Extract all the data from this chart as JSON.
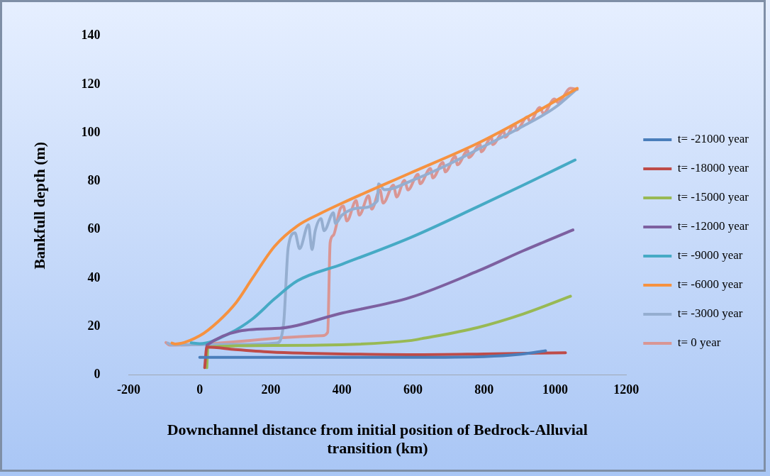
{
  "chart_data": {
    "type": "line",
    "xlabel": "Downchannel distance from initial position of Bedrock-Alluvial transition (km)",
    "ylabel": "Bankfull depth (m)",
    "xlim": [
      -200,
      1200
    ],
    "xticks": [
      -200,
      0,
      200,
      400,
      600,
      800,
      1000,
      1200
    ],
    "ylim": [
      0,
      140
    ],
    "yticks": [
      0,
      20,
      40,
      60,
      80,
      100,
      120,
      140
    ],
    "grid": false,
    "legend": "right",
    "marker": "none",
    "line_style": "solid",
    "series": [
      {
        "name": "t= -21000 year",
        "color": "#4a7ebb",
        "x": [
          0,
          200,
          400,
          600,
          800,
          900,
          973
        ],
        "values": [
          7.3,
          7.3,
          7.3,
          7.3,
          7.6,
          8.5,
          10
        ]
      },
      {
        "name": "t= -18000 year",
        "color": "#be4b48",
        "x": [
          14,
          20,
          100,
          200,
          300,
          400,
          600,
          800,
          1029
        ],
        "values": [
          3,
          11.5,
          10.5,
          9.5,
          9,
          8.7,
          8.4,
          8.7,
          9.2
        ]
      },
      {
        "name": "t= -15000 year",
        "color": "#98b954",
        "x": [
          20,
          23,
          211,
          338,
          592,
          624,
          782,
          910,
          1043
        ],
        "values": [
          3,
          11.5,
          12.2,
          12.3,
          14.2,
          15,
          19.6,
          25.2,
          32.5
        ]
      },
      {
        "name": "t= -12000 year",
        "color": "#7d60a0",
        "x": [
          18,
          20,
          211,
          401,
          592,
          782,
          910,
          1050
        ],
        "values": [
          7,
          12.3,
          19.2,
          25.6,
          32,
          42.9,
          51.3,
          59.9
        ]
      },
      {
        "name": "t= -9000 year",
        "color": "#46aac5",
        "x": [
          -24,
          0,
          84,
          148,
          211,
          275,
          401,
          592,
          782,
          910,
          1056
        ],
        "values": [
          13.3,
          12.9,
          17.2,
          23.1,
          31.5,
          38.9,
          45.8,
          56.7,
          69.5,
          78.4,
          88.8
        ]
      },
      {
        "name": "t= -6000 year",
        "color": "#f69240",
        "x": [
          -78,
          -69,
          0,
          52,
          103,
          148,
          211,
          275,
          338,
          401,
          592,
          782,
          910,
          1062
        ],
        "values": [
          13.2,
          12.8,
          16.2,
          22.1,
          30,
          39.9,
          53.2,
          61.6,
          66.6,
          71,
          83.4,
          95.7,
          105.6,
          118.4
        ]
      },
      {
        "name": "t= -3000 year",
        "color": "#95aed0",
        "x": [
          -90,
          -80,
          100,
          217,
          236,
          249,
          268,
          281,
          306,
          316,
          325,
          341,
          350,
          376,
          382,
          400,
          450,
          500,
          503,
          520,
          600,
          700,
          800,
          900,
          1000,
          1060
        ],
        "values": [
          13.2,
          12.5,
          12.6,
          13.2,
          21.1,
          52.7,
          58.7,
          52.2,
          62.1,
          51.8,
          59.6,
          64.6,
          59.6,
          67,
          62.6,
          66,
          69,
          72,
          78.9,
          76.5,
          80.5,
          87,
          94.5,
          102,
          110.5,
          118
        ]
      },
      {
        "name": "t= 0 year",
        "color": "#d99694",
        "x": [
          -95,
          -84,
          344,
          360,
          367,
          376,
          395,
          404,
          414,
          440,
          449,
          475,
          484,
          507,
          516,
          545,
          554,
          576,
          586,
          614,
          620,
          649,
          656,
          684,
          691,
          719,
          725,
          754,
          757,
          789,
          792,
          821,
          824,
          856,
          859,
          887,
          891,
          922,
          929,
          957,
          967,
          998,
          1008,
          1043,
          1062
        ],
        "values": [
          13.4,
          12.3,
          16.2,
          17.6,
          54.7,
          57.7,
          68.5,
          69.8,
          63.6,
          72,
          66,
          74,
          68.5,
          76.4,
          71,
          78.4,
          73.5,
          80.4,
          76.4,
          82.9,
          79,
          85.3,
          81.4,
          87.8,
          83.9,
          90.3,
          86.8,
          92.7,
          89.8,
          95.2,
          92.2,
          98.2,
          95.2,
          100.7,
          98.2,
          103.6,
          101.1,
          106.6,
          104.6,
          110.5,
          108,
          114,
          112.5,
          118.4,
          117.9
        ]
      }
    ]
  }
}
